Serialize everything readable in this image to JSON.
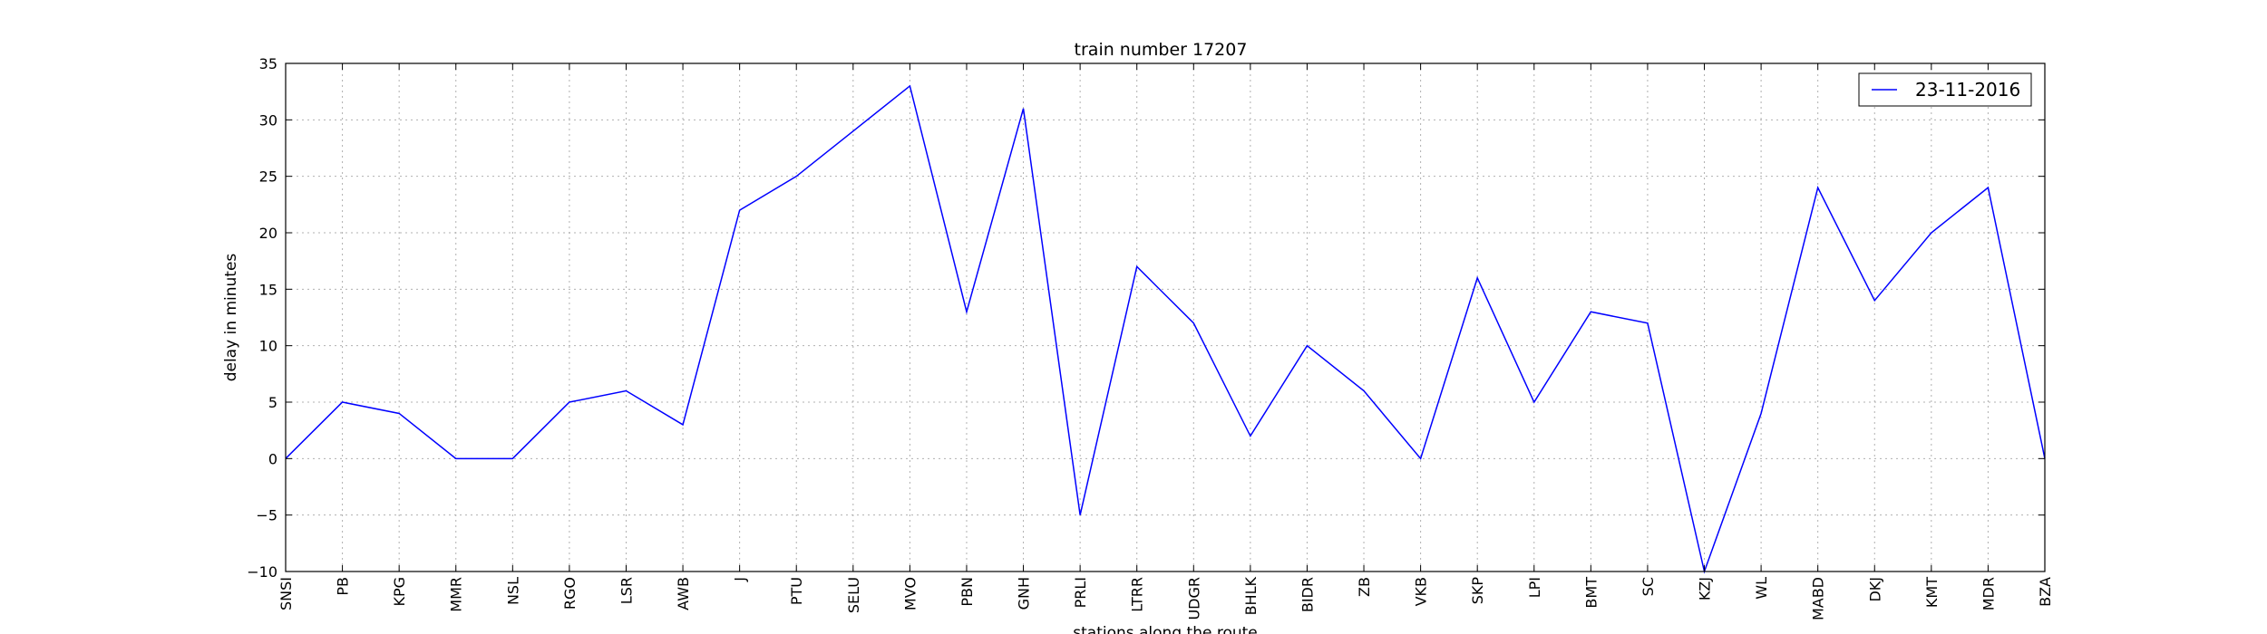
{
  "chart_data": {
    "type": "line",
    "title": "train number 17207",
    "xlabel": "stations along the route",
    "ylabel": "delay in minutes",
    "ylim": [
      -10,
      35
    ],
    "yticks": [
      "35",
      "30",
      "25",
      "20",
      "15",
      "10",
      "5",
      "0",
      "−5",
      "−10"
    ],
    "ytick_values": [
      35,
      30,
      25,
      20,
      15,
      10,
      5,
      0,
      -5,
      -10
    ],
    "grid": true,
    "legend_position": "top-right",
    "categories": [
      "SNSI",
      "PB",
      "KPG",
      "MMR",
      "NSL",
      "RGO",
      "LSR",
      "AWB",
      "J",
      "PTU",
      "SELU",
      "MVO",
      "PBN",
      "GNH",
      "PRLI",
      "LTRR",
      "UDGR",
      "BHLK",
      "BIDR",
      "ZB",
      "VKB",
      "SKP",
      "LPI",
      "BMT",
      "SC",
      "KZJ",
      "WL",
      "MABD",
      "DKJ",
      "KMT",
      "MDR",
      "BZA"
    ],
    "series": [
      {
        "name": "23-11-2016",
        "color": "#0000ff",
        "values": [
          0,
          5,
          4,
          0,
          0,
          5,
          6,
          3,
          22,
          25,
          29,
          33,
          13,
          31,
          -5,
          17,
          12,
          2,
          10,
          6,
          0,
          16,
          5,
          13,
          12,
          -10,
          4,
          24,
          14,
          20,
          24,
          0
        ]
      }
    ]
  }
}
